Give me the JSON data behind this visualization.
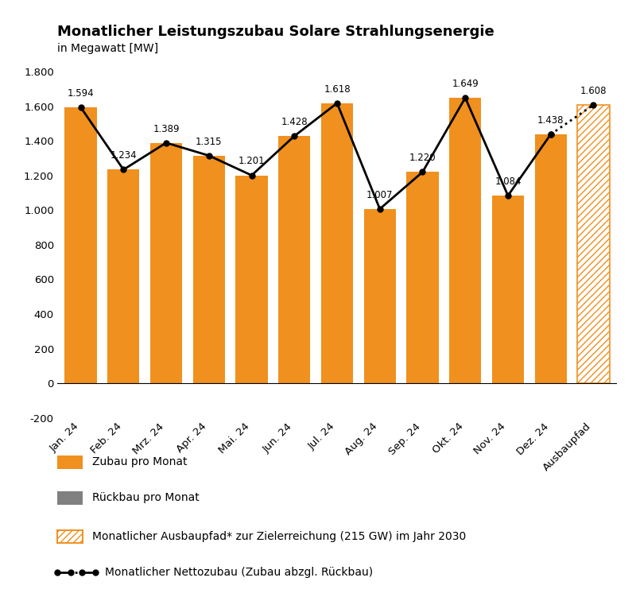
{
  "title": "Monatlicher Leistungszubau Solare Strahlungsenergie",
  "subtitle": "in Megawatt [MW]",
  "categories": [
    "Jan. 24",
    "Feb. 24",
    "Mrz. 24",
    "Apr. 24",
    "Mai. 24",
    "Jun. 24",
    "Jul. 24",
    "Aug. 24",
    "Sep. 24",
    "Okt. 24",
    "Nov. 24",
    "Dez. 24",
    "Ausbaupfad"
  ],
  "bar_values": [
    1594,
    1234,
    1389,
    1315,
    1201,
    1428,
    1618,
    1007,
    1220,
    1649,
    1084,
    1438,
    1608
  ],
  "line_values": [
    1594,
    1234,
    1389,
    1315,
    1201,
    1428,
    1618,
    1007,
    1220,
    1649,
    1084,
    1438,
    1608
  ],
  "line_labels": [
    "1.594",
    "1.234",
    "1.389",
    "1.315",
    "1.201",
    "1.428",
    "1.618",
    "1.007",
    "1.220",
    "1.649",
    "1.084",
    "1.438",
    "1.608"
  ],
  "bar_color": "#F0901E",
  "line_color": "#000000",
  "gray_color": "#808080",
  "ylim": [
    -200,
    1800
  ],
  "yticks": [
    -200,
    0,
    200,
    400,
    600,
    800,
    1000,
    1200,
    1400,
    1600,
    1800
  ],
  "ytick_labels": [
    "-200",
    "0",
    "200",
    "400",
    "600",
    "800",
    "1.000",
    "1.200",
    "1.400",
    "1.600",
    "1.800"
  ],
  "legend_zubau": "Zubau pro Monat",
  "legend_rueckbau": "Rückbau pro Monat",
  "legend_ausbaupfad": "Monatlicher Ausbaupfad* zur Zielerreichung (215 GW) im Jahr 2030",
  "legend_netto": "Monatlicher Nettozubau (Zubau abzgl. Rückbau)",
  "background_color": "#ffffff"
}
